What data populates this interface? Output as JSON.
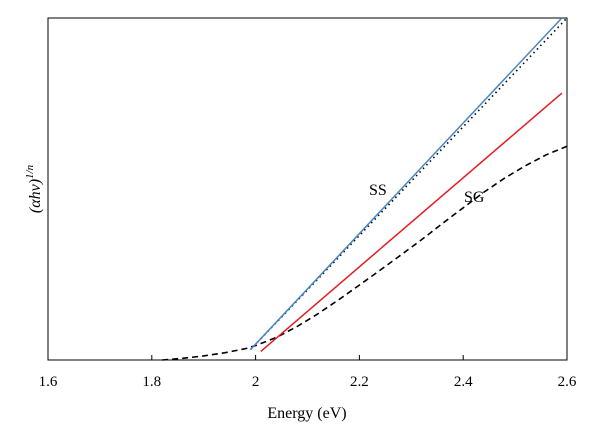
{
  "chart_data": {
    "type": "line",
    "title": "",
    "xlabel": "Energy (eV)",
    "ylabel": "(αhν)",
    "ylabel_superscript": "1/n",
    "xlim": [
      1.6,
      2.6
    ],
    "ylim": [
      0,
      1
    ],
    "x_ticks": [
      "1.6",
      "1.8",
      "2",
      "2.2",
      "2.4",
      "2.6"
    ],
    "y_ticks": [],
    "grid": false,
    "legend": "none",
    "annotations": [
      "SS",
      "SG"
    ],
    "series": [
      {
        "style": "dashed",
        "color": "#000000",
        "x": [
          1.82,
          1.86,
          1.9,
          1.94,
          1.98,
          2.0,
          2.04,
          2.08,
          2.12,
          2.16,
          2.2,
          2.24,
          2.28,
          2.32,
          2.36,
          2.4,
          2.44,
          2.48,
          2.52,
          2.56,
          2.6
        ],
        "y": [
          0.0,
          0.005,
          0.012,
          0.021,
          0.033,
          0.042,
          0.066,
          0.098,
          0.135,
          0.176,
          0.219,
          0.263,
          0.307,
          0.352,
          0.399,
          0.445,
          0.491,
          0.532,
          0.568,
          0.6,
          0.625
        ]
      },
      {
        "style": "dotted",
        "color": "#000000",
        "x": [
          1.99,
          2.6
        ],
        "y": [
          0.03,
          1.0
        ]
      },
      {
        "style": "solid",
        "color": "#4a86c0",
        "x": [
          1.99,
          2.59
        ],
        "y": [
          0.03,
          1.0
        ]
      },
      {
        "style": "solid",
        "color": "#e51c23",
        "x": [
          2.01,
          2.59
        ],
        "y": [
          0.025,
          0.78
        ]
      }
    ]
  }
}
